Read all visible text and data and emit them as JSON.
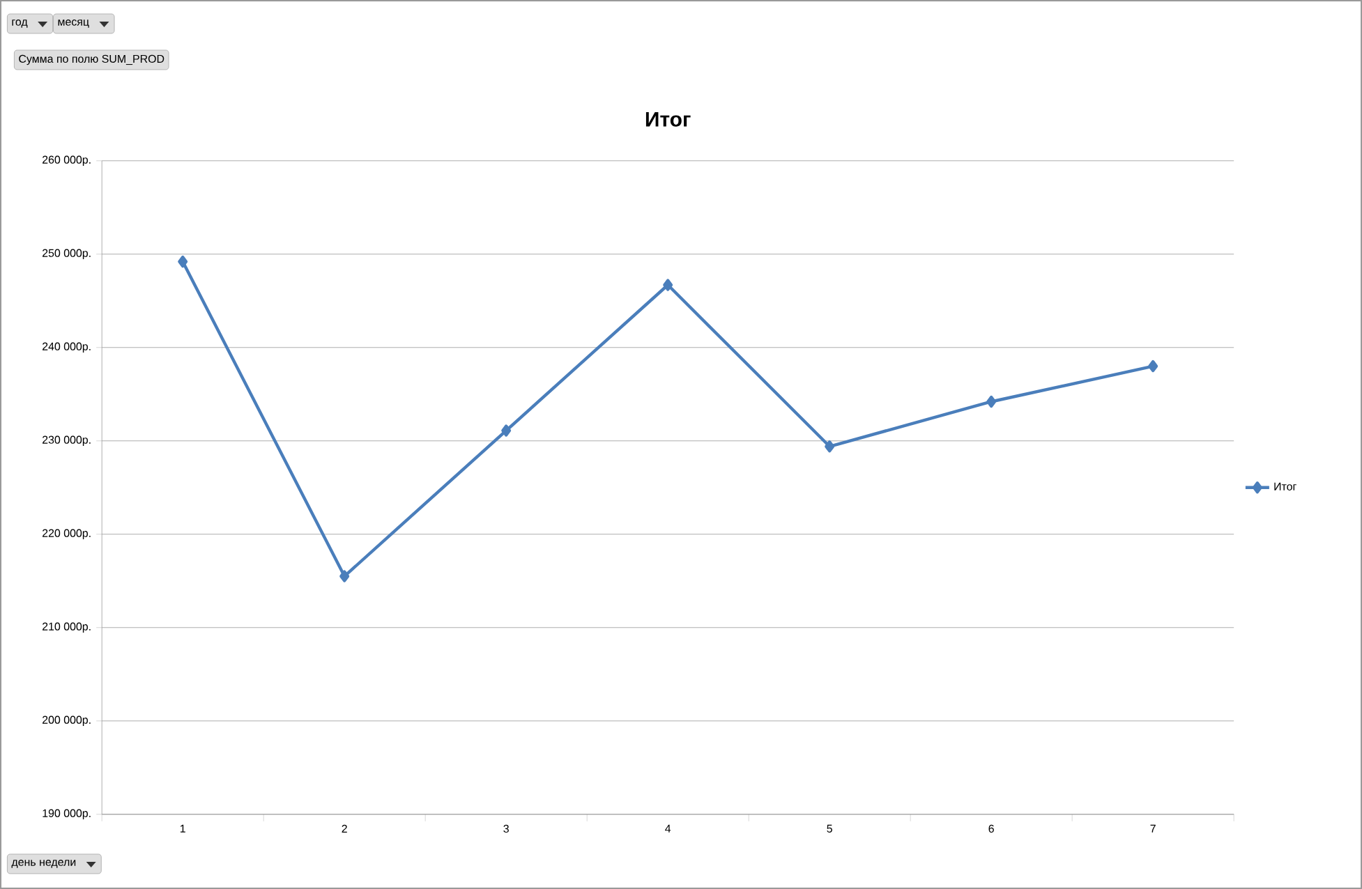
{
  "chart_data": {
    "type": "line",
    "title": "Итог",
    "categories": [
      "1",
      "2",
      "3",
      "4",
      "5",
      "6",
      "7"
    ],
    "series": [
      {
        "name": "Итог",
        "color": "#4a7ebb",
        "values": [
          249200,
          215500,
          231100,
          246700,
          229400,
          234200,
          238000
        ]
      }
    ],
    "ylim": [
      190000,
      260000
    ],
    "yticks": [
      {
        "value": 190000,
        "label": "190 000р."
      },
      {
        "value": 200000,
        "label": "200 000р."
      },
      {
        "value": 210000,
        "label": "210 000р."
      },
      {
        "value": 220000,
        "label": "220 000р."
      },
      {
        "value": 230000,
        "label": "230 000р."
      },
      {
        "value": 240000,
        "label": "240 000р."
      },
      {
        "value": 250000,
        "label": "250 000р."
      },
      {
        "value": 260000,
        "label": "260 000р."
      }
    ],
    "grid": "y",
    "legend": "right",
    "marker": "diamond",
    "line_style": "solid",
    "annotations": [
      "год",
      "месяц",
      "Сумма по полю SUM_PROD",
      "день недели"
    ]
  }
}
